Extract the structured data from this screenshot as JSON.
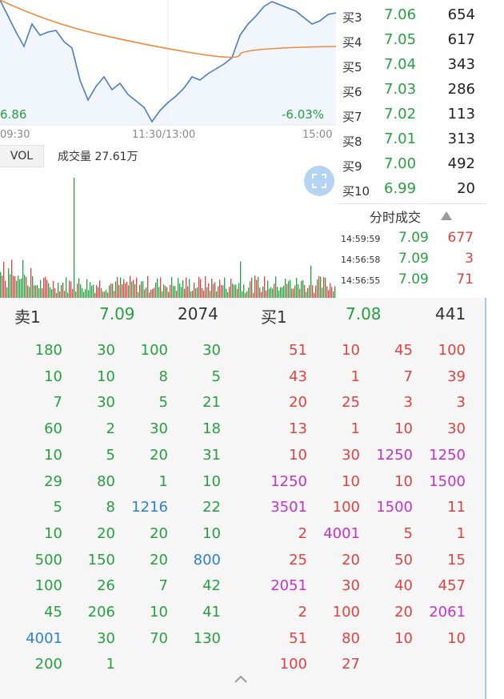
{
  "chart": {
    "price_left": "6.86",
    "change_right": "-6.03%",
    "times": [
      "09:30",
      "11:30/13:00",
      "15:00"
    ],
    "vol_tab": "VOL",
    "volume_text": "成交量 27.61万"
  },
  "orderbook_bids": [
    {
      "label": "买3",
      "price": "7.06",
      "volume": "654"
    },
    {
      "label": "买4",
      "price": "7.05",
      "volume": "617"
    },
    {
      "label": "买5",
      "price": "7.04",
      "volume": "343"
    },
    {
      "label": "买6",
      "price": "7.03",
      "volume": "286"
    },
    {
      "label": "买7",
      "price": "7.02",
      "volume": "113"
    },
    {
      "label": "买8",
      "price": "7.01",
      "volume": "313"
    },
    {
      "label": "买9",
      "price": "7.00",
      "volume": "492"
    },
    {
      "label": "买10",
      "price": "6.99",
      "volume": "20"
    }
  ],
  "trades": {
    "title": "分时成交",
    "rows": [
      {
        "time": "14:59:59",
        "price": "7.09",
        "volume": "677"
      },
      {
        "time": "14:56:58",
        "price": "7.09",
        "volume": "3"
      },
      {
        "time": "14:56:55",
        "price": "7.09",
        "volume": "71"
      }
    ]
  },
  "queue": {
    "sell": {
      "label": "卖1",
      "price": "7.09",
      "volume": "2074"
    },
    "buy": {
      "label": "买1",
      "price": "7.08",
      "volume": "441"
    },
    "sell_rows": [
      [
        "180",
        "30",
        "100",
        "30"
      ],
      [
        "10",
        "10",
        "8",
        "5"
      ],
      [
        "7",
        "30",
        "5",
        "21"
      ],
      [
        "60",
        "2",
        "30",
        "18"
      ],
      [
        "10",
        "5",
        "20",
        "31"
      ],
      [
        "29",
        "80",
        "1",
        "10"
      ],
      [
        "5",
        "8",
        "1216",
        "22"
      ],
      [
        "10",
        "20",
        "20",
        "10"
      ],
      [
        "500",
        "150",
        "20",
        "800"
      ],
      [
        "100",
        "26",
        "7",
        "42"
      ],
      [
        "45",
        "206",
        "10",
        "41"
      ],
      [
        "4001",
        "30",
        "70",
        "130"
      ],
      [
        "200",
        "1",
        "",
        ""
      ]
    ],
    "buy_rows": [
      [
        "51",
        "10",
        "45",
        "100"
      ],
      [
        "43",
        "1",
        "7",
        "39"
      ],
      [
        "20",
        "25",
        "3",
        "3"
      ],
      [
        "13",
        "1",
        "10",
        "30"
      ],
      [
        "10",
        "30",
        "1250",
        "1250"
      ],
      [
        "1250",
        "10",
        "10",
        "1500"
      ],
      [
        "3501",
        "100",
        "1500",
        "11"
      ],
      [
        "2",
        "4001",
        "5",
        "1"
      ],
      [
        "25",
        "20",
        "50",
        "15"
      ],
      [
        "2051",
        "30",
        "40",
        "457"
      ],
      [
        "2",
        "100",
        "20",
        "2061"
      ],
      [
        "51",
        "80",
        "10",
        "10"
      ],
      [
        "100",
        "27",
        "",
        ""
      ]
    ]
  },
  "colors": {
    "green": "#27a13f",
    "red": "#e04341",
    "blue": "#2f7fd8",
    "magenta": "#c533c8",
    "line": "#4a7ec9",
    "avg": "#ee8b3c"
  }
}
